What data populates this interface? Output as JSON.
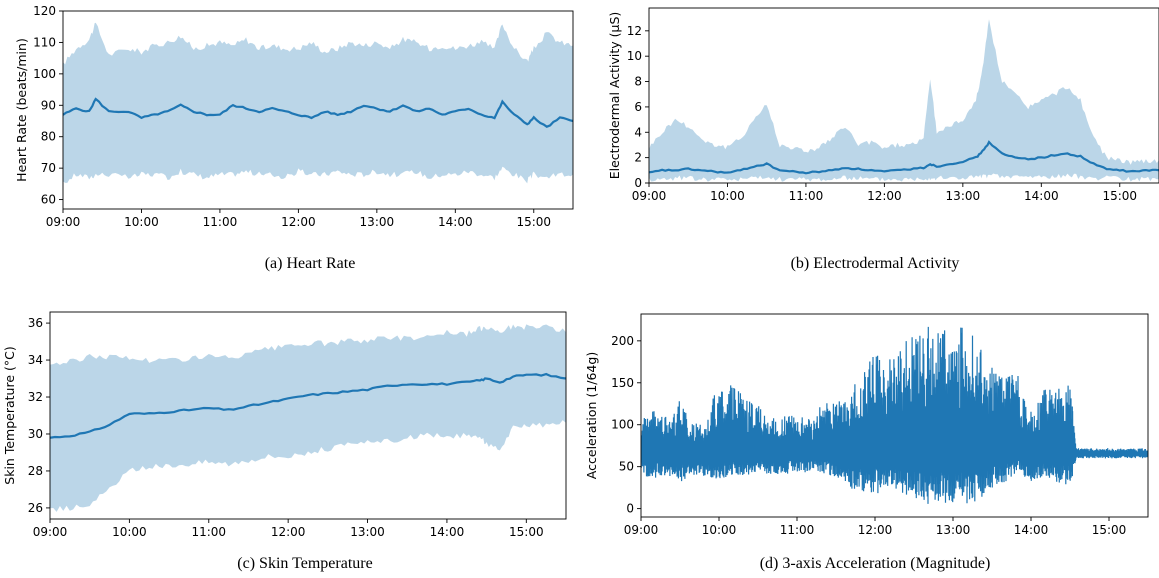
{
  "chart_data": [
    {
      "type": "line",
      "caption": "(a)  Heart Rate",
      "xlabel": "",
      "ylabel": "Heart Rate (beats/min)",
      "xlim": [
        "09:00",
        "15:30"
      ],
      "ylim": [
        57,
        120
      ],
      "xticks": [
        "09:00",
        "10:00",
        "11:00",
        "12:00",
        "13:00",
        "14:00",
        "15:00"
      ],
      "yticks": [
        60,
        70,
        80,
        90,
        100,
        110,
        120
      ],
      "grid": false,
      "series": [
        {
          "x": [
            "09:00",
            "09:10",
            "09:20",
            "09:25",
            "09:35",
            "09:50",
            "10:00",
            "10:10",
            "10:20",
            "10:30",
            "10:40",
            "10:50",
            "11:00",
            "11:10",
            "11:20",
            "11:30",
            "11:40",
            "11:50",
            "12:00",
            "12:10",
            "12:20",
            "12:30",
            "12:40",
            "12:50",
            "13:00",
            "13:10",
            "13:20",
            "13:30",
            "13:40",
            "13:50",
            "14:00",
            "14:10",
            "14:20",
            "14:30",
            "14:36",
            "14:45",
            "14:55",
            "15:00",
            "15:10",
            "15:20",
            "15:30"
          ],
          "mean": [
            87,
            89,
            88,
            92,
            88,
            88,
            86,
            87,
            88,
            90,
            88,
            87,
            87,
            90,
            89,
            88,
            89,
            88,
            87,
            86,
            88,
            87,
            88,
            90,
            89,
            88,
            90,
            88,
            89,
            87,
            88,
            89,
            87,
            86,
            91,
            87,
            84,
            86,
            83,
            86,
            85
          ],
          "lower": [
            65,
            68,
            67,
            68,
            68,
            67,
            68,
            68,
            67,
            69,
            68,
            67,
            68,
            68,
            69,
            68,
            68,
            67,
            69,
            68,
            68,
            69,
            68,
            68,
            69,
            68,
            68,
            69,
            67,
            68,
            68,
            69,
            68,
            67,
            70,
            68,
            66,
            68,
            67,
            68,
            68
          ],
          "upper": [
            103,
            108,
            111,
            116,
            106,
            108,
            107,
            109,
            110,
            112,
            108,
            109,
            110,
            109,
            111,
            108,
            109,
            108,
            108,
            110,
            107,
            108,
            110,
            109,
            110,
            108,
            111,
            110,
            108,
            109,
            108,
            109,
            110,
            108,
            116,
            108,
            104,
            108,
            113,
            110,
            109
          ],
          "color": "#1f77b4"
        }
      ]
    },
    {
      "type": "line",
      "caption": "(b)  Electrodermal Activity",
      "xlabel": "",
      "ylabel": "Electrodermal Activity (μS)",
      "xlim": [
        "09:00",
        "15:30"
      ],
      "ylim": [
        0,
        13.8
      ],
      "xticks": [
        "09:00",
        "10:00",
        "11:00",
        "12:00",
        "13:00",
        "14:00",
        "15:00"
      ],
      "yticks": [
        0,
        2,
        4,
        6,
        8,
        10,
        12
      ],
      "grid": false,
      "series": [
        {
          "x": [
            "09:00",
            "09:10",
            "09:20",
            "09:30",
            "09:40",
            "09:50",
            "10:00",
            "10:10",
            "10:20",
            "10:30",
            "10:40",
            "10:50",
            "11:00",
            "11:10",
            "11:20",
            "11:30",
            "11:40",
            "11:50",
            "12:00",
            "12:10",
            "12:20",
            "12:30",
            "12:35",
            "12:40",
            "12:50",
            "13:00",
            "13:10",
            "13:15",
            "13:20",
            "13:30",
            "13:40",
            "13:50",
            "14:00",
            "14:10",
            "14:20",
            "14:30",
            "14:40",
            "14:50",
            "15:00",
            "15:10",
            "15:20",
            "15:30"
          ],
          "mean": [
            0.8,
            1.0,
            1.0,
            1.1,
            1.0,
            0.9,
            0.8,
            1.0,
            1.3,
            1.5,
            1.0,
            0.9,
            0.8,
            0.9,
            1.0,
            1.2,
            1.1,
            1.0,
            0.9,
            1.0,
            1.1,
            1.2,
            1.5,
            1.3,
            1.5,
            1.7,
            2.0,
            2.5,
            3.2,
            2.3,
            2.0,
            1.9,
            2.0,
            2.2,
            2.3,
            2.1,
            1.5,
            1.1,
            1.0,
            0.9,
            1.0,
            1.0
          ],
          "lower": [
            0.3,
            0.3,
            0.4,
            0.4,
            0.3,
            0.3,
            0.3,
            0.3,
            0.4,
            0.4,
            0.3,
            0.3,
            0.3,
            0.3,
            0.3,
            0.4,
            0.4,
            0.3,
            0.3,
            0.3,
            0.3,
            0.4,
            0.4,
            0.4,
            0.4,
            0.4,
            0.5,
            0.5,
            0.6,
            0.5,
            0.5,
            0.5,
            0.5,
            0.5,
            0.6,
            0.5,
            0.4,
            0.4,
            0.3,
            0.3,
            0.3,
            0.3
          ],
          "upper": [
            2.8,
            4.0,
            5.0,
            4.5,
            3.5,
            3.0,
            2.8,
            3.5,
            5.0,
            6.2,
            3.0,
            2.8,
            2.5,
            2.8,
            3.5,
            4.5,
            3.0,
            3.2,
            2.8,
            3.0,
            3.0,
            3.5,
            8.3,
            4.0,
            4.5,
            5.0,
            6.5,
            9.0,
            12.8,
            8.0,
            7.0,
            6.0,
            6.5,
            7.0,
            7.6,
            6.5,
            3.5,
            2.0,
            1.8,
            1.6,
            1.7,
            1.8
          ],
          "color": "#1f77b4"
        }
      ]
    },
    {
      "type": "line",
      "caption": "(c)  Skin Temperature",
      "xlabel": "",
      "ylabel": "Skin Temperature (°C)",
      "xlim": [
        "09:00",
        "15:30"
      ],
      "ylim": [
        25.4,
        36.6
      ],
      "xticks": [
        "09:00",
        "10:00",
        "11:00",
        "12:00",
        "13:00",
        "14:00",
        "15:00"
      ],
      "yticks": [
        26,
        28,
        30,
        32,
        34,
        36
      ],
      "grid": false,
      "series": [
        {
          "x": [
            "09:00",
            "09:15",
            "09:30",
            "09:45",
            "10:00",
            "10:15",
            "10:30",
            "10:45",
            "11:00",
            "11:15",
            "11:30",
            "11:45",
            "12:00",
            "12:15",
            "12:30",
            "12:45",
            "13:00",
            "13:15",
            "13:30",
            "13:45",
            "14:00",
            "14:15",
            "14:25",
            "14:30",
            "14:40",
            "14:50",
            "15:00",
            "15:15",
            "15:30"
          ],
          "mean": [
            29.8,
            29.9,
            30.1,
            30.5,
            31.1,
            31.1,
            31.2,
            31.3,
            31.4,
            31.3,
            31.5,
            31.7,
            31.9,
            32.1,
            32.2,
            32.3,
            32.4,
            32.6,
            32.7,
            32.7,
            32.7,
            32.8,
            32.9,
            33.0,
            32.8,
            33.1,
            33.2,
            33.2,
            33.0
          ],
          "lower": [
            25.9,
            26.0,
            26.2,
            27.0,
            28.0,
            28.2,
            28.3,
            28.4,
            28.5,
            28.4,
            28.6,
            28.8,
            28.8,
            29.0,
            29.2,
            29.4,
            29.5,
            29.6,
            29.8,
            29.9,
            29.9,
            29.9,
            29.8,
            29.5,
            29.2,
            30.3,
            30.4,
            30.5,
            30.6
          ],
          "upper": [
            33.8,
            33.9,
            34.2,
            34.2,
            34.1,
            34.0,
            34.0,
            34.1,
            34.2,
            34.1,
            34.3,
            34.6,
            34.7,
            34.9,
            34.9,
            35.0,
            35.1,
            35.2,
            35.2,
            35.3,
            35.5,
            35.4,
            35.7,
            35.8,
            35.6,
            35.8,
            35.8,
            35.8,
            35.5
          ],
          "color": "#1f77b4"
        }
      ]
    },
    {
      "type": "line",
      "caption": "(d)  3-axis Acceleration (Magnitude)",
      "xlabel": "",
      "ylabel": "Acceleration (1/64g)",
      "xlim": [
        "09:00",
        "15:30"
      ],
      "ylim": [
        -10,
        232
      ],
      "xticks": [
        "09:00",
        "10:00",
        "11:00",
        "12:00",
        "13:00",
        "14:00",
        "15:00"
      ],
      "yticks": [
        0,
        50,
        100,
        150,
        200
      ],
      "grid": false,
      "series": [
        {
          "x": [
            "09:00",
            "09:10",
            "09:20",
            "09:30",
            "09:40",
            "09:50",
            "10:00",
            "10:10",
            "10:20",
            "10:30",
            "10:40",
            "10:50",
            "11:00",
            "11:10",
            "11:20",
            "11:30",
            "11:40",
            "11:50",
            "12:00",
            "12:10",
            "12:20",
            "12:30",
            "12:40",
            "12:50",
            "13:00",
            "13:10",
            "13:20",
            "13:30",
            "13:40",
            "13:50",
            "14:00",
            "14:10",
            "14:20",
            "14:30",
            "14:35",
            "14:40",
            "14:50",
            "15:00",
            "15:10",
            "15:20",
            "15:30"
          ],
          "min": [
            40,
            35,
            40,
            30,
            40,
            38,
            35,
            40,
            38,
            45,
            40,
            42,
            40,
            45,
            42,
            38,
            25,
            18,
            15,
            25,
            20,
            10,
            5,
            8,
            5,
            5,
            10,
            25,
            30,
            45,
            30,
            35,
            30,
            25,
            60,
            60,
            60,
            60,
            60,
            60,
            60
          ],
          "max": [
            105,
            120,
            110,
            130,
            100,
            110,
            150,
            152,
            130,
            125,
            110,
            110,
            115,
            110,
            125,
            130,
            135,
            165,
            185,
            175,
            195,
            210,
            220,
            222,
            215,
            220,
            200,
            170,
            155,
            165,
            120,
            145,
            145,
            150,
            72,
            72,
            72,
            72,
            72,
            72,
            72
          ],
          "color": "#1f77b4"
        }
      ]
    }
  ]
}
